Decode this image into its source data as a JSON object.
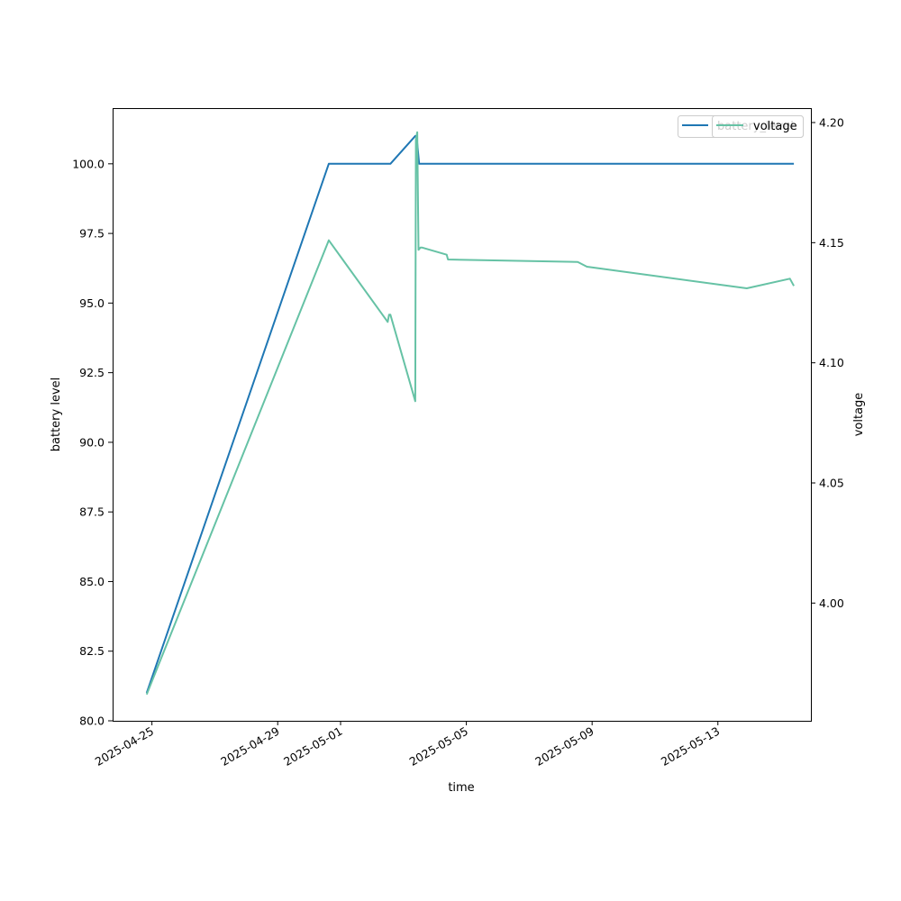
{
  "chart_data": {
    "type": "line",
    "xlabel": "time",
    "ylabel_left": "battery level",
    "ylabel_right": "voltage",
    "x_ticks": [
      "2025-04-25",
      "2025-04-29",
      "2025-05-01",
      "2025-05-05",
      "2025-05-09",
      "2025-05-13"
    ],
    "x_range": [
      "2025-04-23T18:00",
      "2025-05-15T23:00"
    ],
    "y_left": {
      "range": [
        80.0,
        102.0
      ],
      "ticks": [
        "80.0",
        "82.5",
        "85.0",
        "87.5",
        "90.0",
        "92.5",
        "95.0",
        "97.5",
        "100.0"
      ]
    },
    "y_right": {
      "range": [
        3.951,
        4.206
      ],
      "ticks": [
        "4.00",
        "4.05",
        "4.10",
        "4.15",
        "4.20"
      ]
    },
    "grid": false,
    "legend_position": "top-right",
    "series": [
      {
        "name": "battery_level",
        "axis": "left",
        "color": "#1f77b4",
        "points": [
          [
            "2025-04-24T20:00",
            81.0
          ],
          [
            "2025-04-30T15:00",
            100.0
          ],
          [
            "2025-05-02T14:00",
            100.0
          ],
          [
            "2025-05-03T09:00",
            101.0
          ],
          [
            "2025-05-03T10:00",
            101.0
          ],
          [
            "2025-05-03T12:00",
            100.0
          ],
          [
            "2025-05-15T10:00",
            100.0
          ]
        ]
      },
      {
        "name": "voltage",
        "axis": "right",
        "color": "#66c2a5",
        "points": [
          [
            "2025-04-24T20:00",
            3.962
          ],
          [
            "2025-04-30T15:00",
            4.151
          ],
          [
            "2025-05-02T12:00",
            4.117
          ],
          [
            "2025-05-02T13:00",
            4.12
          ],
          [
            "2025-05-02T14:00",
            4.12
          ],
          [
            "2025-05-03T09:00",
            4.084
          ],
          [
            "2025-05-03T09:30",
            4.193
          ],
          [
            "2025-05-03T10:30",
            4.196
          ],
          [
            "2025-05-03T11:30",
            4.147
          ],
          [
            "2025-05-03T13:00",
            4.148
          ],
          [
            "2025-05-03T14:00",
            4.148
          ],
          [
            "2025-05-04T09:00",
            4.145
          ],
          [
            "2025-05-04T10:00",
            4.143
          ],
          [
            "2025-05-08T13:00",
            4.142
          ],
          [
            "2025-05-08T20:00",
            4.14
          ],
          [
            "2025-05-13T22:00",
            4.131
          ],
          [
            "2025-05-15T07:00",
            4.135
          ],
          [
            "2025-05-15T10:00",
            4.132
          ]
        ]
      }
    ]
  }
}
